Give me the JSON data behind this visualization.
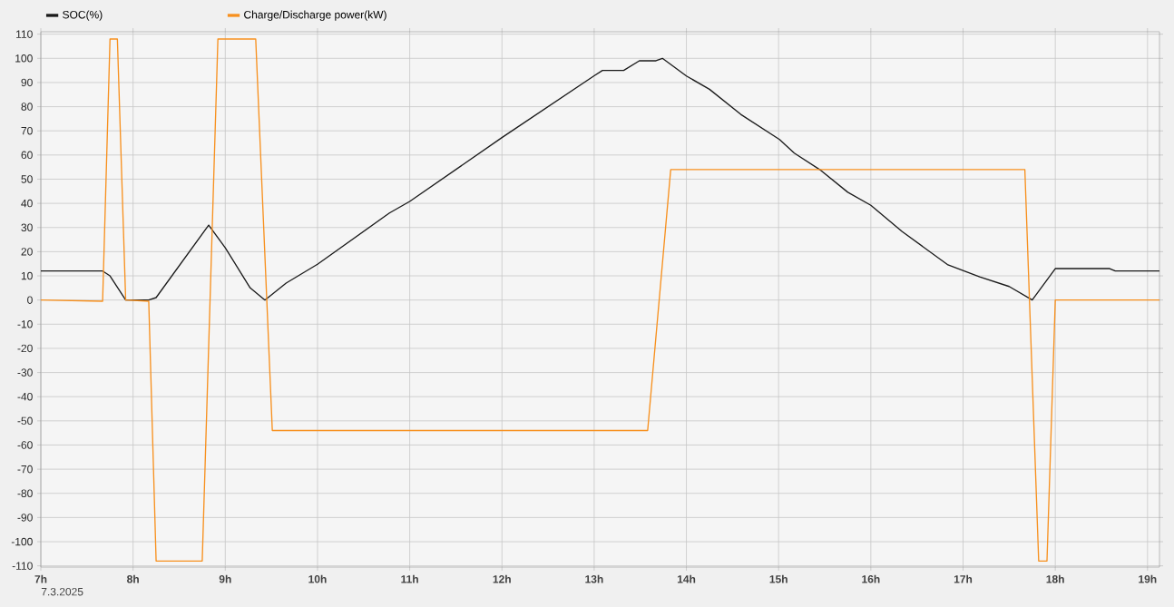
{
  "chart_data": {
    "type": "line",
    "x": [
      7.0,
      7.67,
      7.75,
      7.92,
      8.17,
      8.25,
      8.82,
      9.0,
      9.27,
      9.43,
      9.66,
      10.0,
      10.78,
      11.0,
      12.0,
      13.0,
      13.09,
      13.32,
      13.49,
      13.67,
      13.74,
      14.0,
      14.25,
      14.59,
      15.01,
      15.17,
      15.46,
      15.75,
      16.0,
      16.34,
      16.83,
      17.18,
      17.5,
      17.75,
      18.0,
      18.59,
      18.65,
      19.13
    ],
    "series": [
      {
        "name": "SOC(%)",
        "color": "#1a1a1a",
        "values": [
          12,
          12,
          10,
          0,
          0,
          1,
          31,
          21.6,
          5,
          0,
          7,
          14.8,
          36,
          40.8,
          67.2,
          92.8,
          95,
          95,
          99,
          99,
          100,
          92.7,
          87.2,
          76.8,
          66.4,
          60.8,
          53.6,
          44.6,
          39.2,
          28.3,
          14.7,
          9.6,
          5.6,
          0,
          13,
          13,
          12,
          12
        ]
      },
      {
        "name": "Charge/Discharge power(kW)",
        "color": "#f7901e",
        "x": [
          7.0,
          7.67,
          7.75,
          7.83,
          7.92,
          8.17,
          8.25,
          8.75,
          8.92,
          9.33,
          9.51,
          13.58,
          13.83,
          17.67,
          17.82,
          17.91,
          18.0,
          19.13
        ],
        "values": [
          0,
          -0.5,
          108,
          108,
          0,
          -0.5,
          -108,
          -108,
          108,
          108,
          -54,
          -54,
          54,
          54,
          -108,
          -108,
          0,
          0
        ]
      }
    ],
    "xlim": [
      7,
      19.13
    ],
    "xticks": [
      {
        "value": 7,
        "label": "7h"
      },
      {
        "value": 8,
        "label": "8h"
      },
      {
        "value": 9,
        "label": "9h"
      },
      {
        "value": 10,
        "label": "10h"
      },
      {
        "value": 11,
        "label": "11h"
      },
      {
        "value": 12,
        "label": "12h"
      },
      {
        "value": 13,
        "label": "13h"
      },
      {
        "value": 14,
        "label": "14h"
      },
      {
        "value": 15,
        "label": "15h"
      },
      {
        "value": 16,
        "label": "16h"
      },
      {
        "value": 17,
        "label": "17h"
      },
      {
        "value": 18,
        "label": "18h"
      },
      {
        "value": 19,
        "label": "19h"
      }
    ],
    "ylim": [
      -110.5,
      111
    ],
    "yticks": [
      -110,
      -100,
      -90,
      -80,
      -70,
      -60,
      -50,
      -40,
      -30,
      -20,
      -10,
      0,
      10,
      20,
      30,
      40,
      50,
      60,
      70,
      80,
      90,
      100,
      110
    ],
    "grid": true,
    "legend": "top left",
    "annotations": [
      "7.3.2025"
    ]
  }
}
